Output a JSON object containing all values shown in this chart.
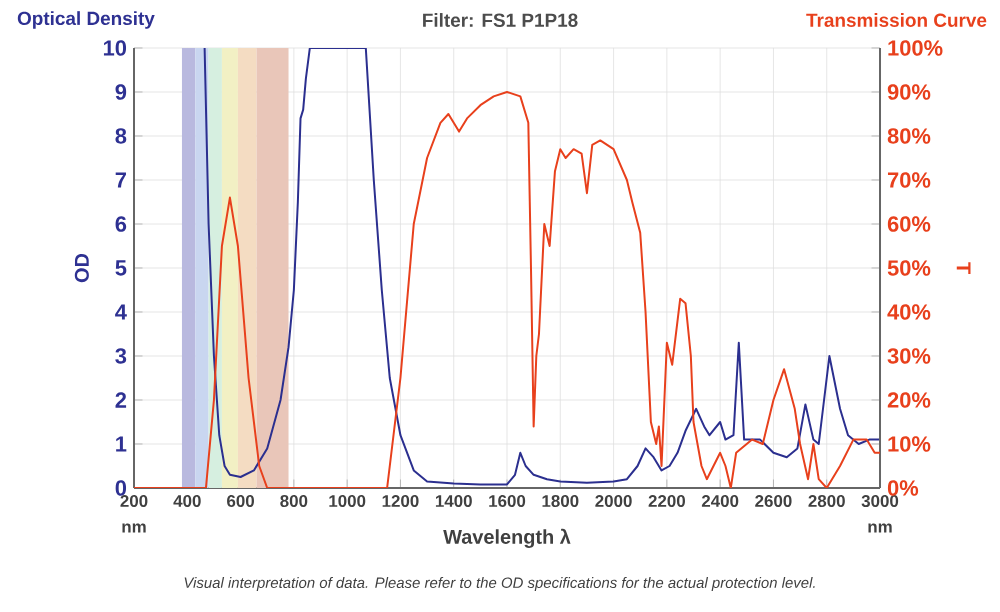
{
  "chart_data": {
    "type": "line",
    "title": "Filter: FS1 P1P18",
    "xlabel": "Wavelength λ",
    "ylabel": "OD",
    "y2label": "T",
    "annotations": [
      "Optical Density",
      "Transmission Curve",
      "nm",
      "nm",
      "Visual interpretation of data. Please refer to the OD specifications for the actual protection level."
    ],
    "xlim": [
      200,
      3000
    ],
    "xticks": [
      200,
      400,
      600,
      800,
      1000,
      1200,
      1400,
      1600,
      1800,
      2000,
      2200,
      2400,
      2600,
      2800,
      3000
    ],
    "ylim": [
      0,
      10
    ],
    "yticks": [
      0,
      1,
      2,
      3,
      4,
      5,
      6,
      7,
      8,
      9,
      10
    ],
    "y2lim": [
      0,
      100
    ],
    "y2ticks": [
      {
        "value": 0,
        "label": "0%"
      },
      {
        "value": 10,
        "label": "10%"
      },
      {
        "value": 20,
        "label": "20%"
      },
      {
        "value": 30,
        "label": "30%"
      },
      {
        "value": 40,
        "label": "40%"
      },
      {
        "value": 50,
        "label": "50%"
      },
      {
        "value": 60,
        "label": "60%"
      },
      {
        "value": 70,
        "label": "70%"
      },
      {
        "value": 80,
        "label": "80%"
      },
      {
        "value": 90,
        "label": "90%"
      },
      {
        "value": 100,
        "label": "100%"
      }
    ],
    "grid": true,
    "marker": "none",
    "line_style": "solid",
    "bands": [
      {
        "axis": "x",
        "from": 380,
        "to": 430,
        "color": "#b9b9df"
      },
      {
        "axis": "x",
        "from": 430,
        "to": 480,
        "color": "#c9d6f0"
      },
      {
        "axis": "x",
        "from": 480,
        "to": 530,
        "color": "#d6efe0"
      },
      {
        "axis": "x",
        "from": 530,
        "to": 590,
        "color": "#f2f0c4"
      },
      {
        "axis": "x",
        "from": 590,
        "to": 660,
        "color": "#f4dcc2"
      },
      {
        "axis": "x",
        "from": 660,
        "to": 780,
        "color": "#e9c6b9"
      }
    ],
    "series": [
      {
        "color": "#2b2f8f",
        "axis": "y",
        "x": [
          465,
          480,
          500,
          520,
          540,
          560,
          600,
          650,
          700,
          750,
          780,
          800,
          815,
          825,
          835,
          845,
          860,
          1070,
          1100,
          1130,
          1160,
          1200,
          1250,
          1300,
          1400,
          1500,
          1600,
          1630,
          1650,
          1670,
          1700,
          1750,
          1800,
          1900,
          2000,
          2050,
          2090,
          2120,
          2150,
          2180,
          2210,
          2240,
          2270,
          2310,
          2340,
          2360,
          2400,
          2420,
          2450,
          2470,
          2490,
          2550,
          2600,
          2650,
          2690,
          2720,
          2750,
          2770,
          2810,
          2850,
          2880,
          2920,
          2960,
          3000
        ],
        "values": [
          10,
          6,
          3,
          1.2,
          0.5,
          0.3,
          0.25,
          0.4,
          0.9,
          2,
          3.2,
          4.5,
          6.5,
          8.4,
          8.6,
          9.3,
          10,
          10,
          7,
          4.5,
          2.5,
          1.2,
          0.4,
          0.15,
          0.1,
          0.08,
          0.08,
          0.3,
          0.8,
          0.5,
          0.3,
          0.2,
          0.15,
          0.12,
          0.15,
          0.2,
          0.5,
          0.9,
          0.7,
          0.4,
          0.5,
          0.8,
          1.3,
          1.8,
          1.4,
          1.2,
          1.5,
          1.1,
          1.2,
          3.3,
          1.1,
          1.1,
          0.8,
          0.7,
          0.9,
          1.9,
          1.1,
          1.0,
          3.0,
          1.8,
          1.2,
          1.0,
          1.1,
          1.1
        ]
      },
      {
        "color": "#e8401c",
        "axis": "y2",
        "x": [
          200,
          470,
          500,
          530,
          560,
          590,
          630,
          670,
          700,
          1150,
          1200,
          1250,
          1300,
          1350,
          1380,
          1420,
          1450,
          1500,
          1550,
          1600,
          1650,
          1680,
          1690,
          1700,
          1710,
          1720,
          1740,
          1760,
          1780,
          1800,
          1820,
          1850,
          1880,
          1900,
          1920,
          1950,
          2000,
          2050,
          2070,
          2100,
          2120,
          2140,
          2160,
          2170,
          2180,
          2200,
          2220,
          2250,
          2270,
          2290,
          2300,
          2330,
          2350,
          2400,
          2420,
          2440,
          2460,
          2500,
          2520,
          2560,
          2600,
          2640,
          2680,
          2700,
          2730,
          2750,
          2770,
          2800,
          2850,
          2900,
          2950,
          2980,
          3000
        ],
        "values": [
          0,
          0,
          20,
          55,
          66,
          55,
          25,
          5,
          0,
          0,
          25,
          60,
          75,
          83,
          85,
          81,
          84,
          87,
          89,
          90,
          89,
          83,
          50,
          14,
          30,
          35,
          60,
          55,
          72,
          77,
          75,
          77,
          76,
          67,
          78,
          79,
          77,
          70,
          65,
          58,
          40,
          15,
          10,
          14,
          5,
          33,
          28,
          43,
          42,
          30,
          15,
          5,
          2,
          8,
          5,
          0,
          8,
          10,
          11,
          10,
          20,
          27,
          18,
          10,
          2,
          10,
          2,
          0,
          5,
          11,
          11,
          8,
          8
        ]
      }
    ]
  }
}
